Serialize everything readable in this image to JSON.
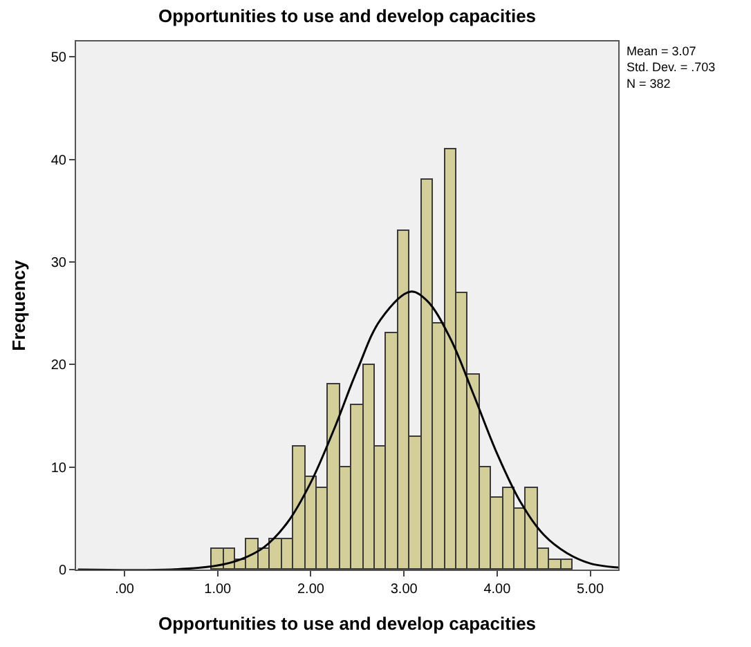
{
  "chart_data": {
    "type": "histogram",
    "title": "Opportunities to use and develop capacities",
    "xlabel": "Opportunities to use and develop capacities",
    "ylabel": "Frequency",
    "series": [
      {
        "color": "#d4cf99",
        "bins": [
          0.9375,
          1.0625,
          1.1875,
          1.3125,
          1.4375,
          1.5625,
          1.6875,
          1.8125,
          1.9375,
          2.0625,
          2.1875,
          2.3125,
          2.4375,
          2.5625,
          2.6875,
          2.8125,
          2.9375,
          3.0625,
          3.1875,
          3.3125,
          3.4375,
          3.5625,
          3.6875,
          3.8125,
          3.9375,
          4.0625,
          4.1875,
          4.3125,
          4.4375,
          4.5625,
          4.6875,
          4.8125
        ],
        "values": [
          2,
          2,
          1,
          3,
          2,
          3,
          3,
          12,
          9,
          8,
          18,
          10,
          16,
          20,
          12,
          23,
          33,
          13,
          38,
          24,
          41,
          27,
          19,
          10,
          7,
          8,
          6,
          8,
          2,
          1,
          1
        ]
      },
      {
        "type": "line",
        "color": "#000000",
        "x": [
          -0.5,
          0.5,
          1.0,
          1.25,
          1.5,
          1.75,
          2.0,
          2.25,
          2.5,
          2.75,
          3.07,
          3.25,
          3.5,
          3.75,
          4.0,
          4.25,
          4.5,
          4.75,
          5.0,
          5.3
        ],
        "values": [
          0,
          0,
          0.4,
          1.0,
          2.2,
          4.6,
          8.5,
          13.7,
          19.5,
          24.4,
          27.1,
          26.2,
          22.5,
          17.0,
          11.3,
          6.6,
          3.4,
          1.6,
          0.6,
          0.2
        ]
      }
    ],
    "xlim": [
      -0.52,
      5.3
    ],
    "xticks": [
      {
        "value": 0,
        "label": ".00"
      },
      {
        "value": 1,
        "label": "1.00"
      },
      {
        "value": 2,
        "label": "2.00"
      },
      {
        "value": 3,
        "label": "3.00"
      },
      {
        "value": 4,
        "label": "4.00"
      },
      {
        "value": 5,
        "label": "5.00"
      }
    ],
    "ylim": [
      0,
      51.5
    ],
    "yticks": [
      0,
      10,
      20,
      30,
      40,
      50
    ],
    "annotations": [
      "Mean = 3.07\nStd. Dev. = .703\nN = 382"
    ],
    "grid": false
  }
}
